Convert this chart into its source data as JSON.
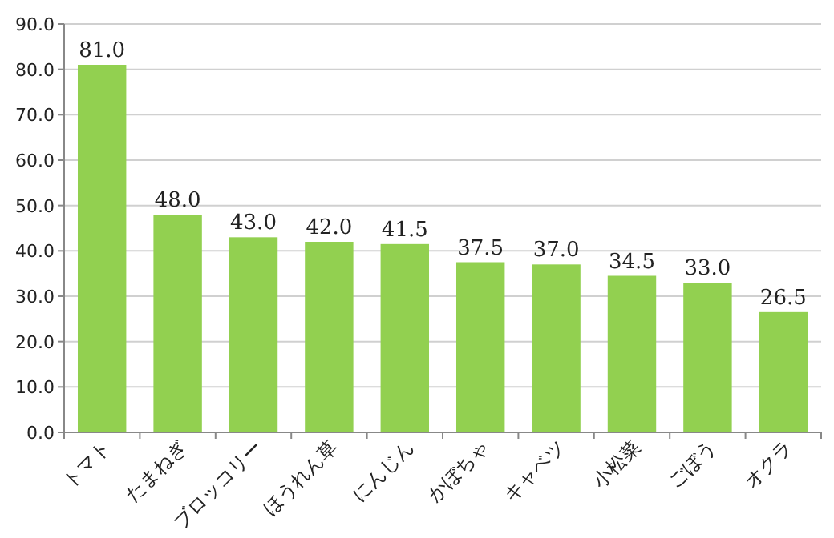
{
  "chart_data": {
    "type": "bar",
    "categories": [
      "トマト",
      "たまねぎ",
      "ブロッコリー",
      "ほうれん草",
      "にんじん",
      "かぼちゃ",
      "キャベツ",
      "小松菜",
      "ごぼう",
      "オクラ"
    ],
    "values": [
      81.0,
      48.0,
      43.0,
      42.0,
      41.5,
      37.5,
      37.0,
      34.5,
      33.0,
      26.5
    ],
    "value_labels": [
      "81.0",
      "48.0",
      "43.0",
      "42.0",
      "41.5",
      "37.5",
      "37.0",
      "34.5",
      "33.0",
      "26.5"
    ],
    "color": "#92d050",
    "ylim": [
      0,
      90
    ],
    "yticks": [
      {
        "value": 0,
        "label": "0.0"
      },
      {
        "value": 10,
        "label": "10.0"
      },
      {
        "value": 20,
        "label": "20.0"
      },
      {
        "value": 30,
        "label": "30.0"
      },
      {
        "value": 40,
        "label": "40.0"
      },
      {
        "value": 50,
        "label": "50.0"
      },
      {
        "value": 60,
        "label": "60.0"
      },
      {
        "value": 70,
        "label": "70.0"
      },
      {
        "value": 80,
        "label": "80.0"
      },
      {
        "value": 90,
        "label": "90.0"
      }
    ],
    "grid": "y"
  }
}
